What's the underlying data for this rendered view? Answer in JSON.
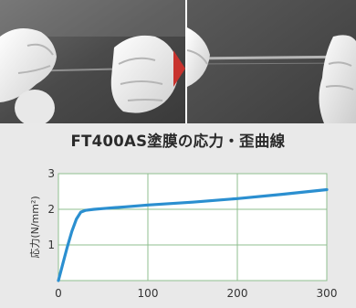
{
  "photos": {
    "left_description": "",
    "right_description": ""
  },
  "colors": {
    "line": "#2b8fd0",
    "panel": "#e9e9e9",
    "plot_bg": "#ffffff",
    "grid": "#8fbf8f",
    "arrow": "#c8332e"
  },
  "chart_data": {
    "type": "line",
    "title": "FT400AS塗膜の応力・歪曲線",
    "xlabel": "",
    "ylabel": "応力(N/mm²)",
    "xlim": [
      0,
      300
    ],
    "ylim": [
      0,
      3
    ],
    "xticks": [
      "0",
      "100",
      "200",
      "300"
    ],
    "yticks": [
      "1",
      "2",
      "3"
    ],
    "grid": true,
    "series": [
      {
        "x": [
          0,
          5,
          10,
          15,
          20,
          25,
          30,
          40,
          50,
          75,
          100,
          150,
          200,
          250,
          300
        ],
        "y": [
          0,
          0.48,
          0.95,
          1.38,
          1.72,
          1.92,
          1.97,
          2.0,
          2.02,
          2.07,
          2.12,
          2.2,
          2.3,
          2.42,
          2.55
        ]
      }
    ]
  }
}
